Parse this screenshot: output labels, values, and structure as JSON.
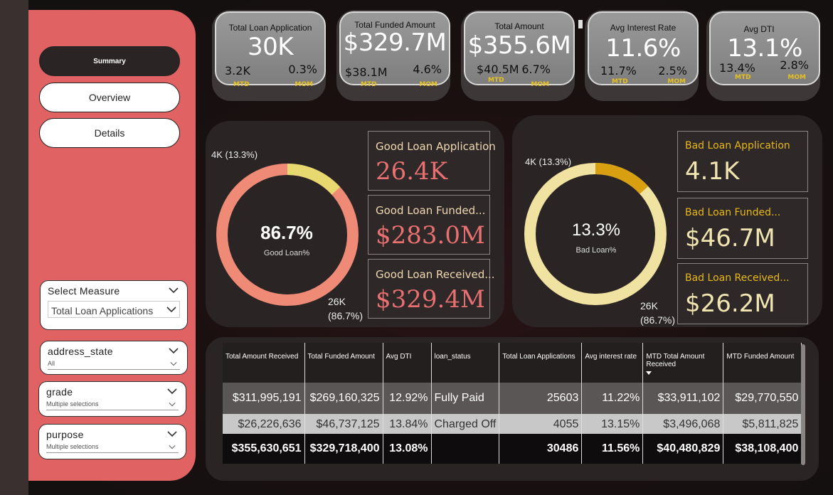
{
  "nav": {
    "summary": "Summary",
    "overview": "Overview",
    "details": "Details"
  },
  "slicers": {
    "measure": {
      "title": "Select Measure",
      "value": "Total Loan Applications"
    },
    "address_state": {
      "title": "address_state",
      "value": "All"
    },
    "grade": {
      "title": "grade",
      "value": "Multiple selections"
    },
    "purpose": {
      "title": "purpose",
      "value": "Multiple selections"
    }
  },
  "kpis": [
    {
      "title": "Total Loan Application",
      "value": "30K",
      "mtd": "3.2K",
      "mom": "0.3%",
      "mtd_label": "MTD",
      "mom_label": "MOM"
    },
    {
      "title": "Total Funded Amount",
      "value": "$329.7M",
      "mtd": "$38.1M",
      "mom": "4.6%",
      "mtd_label": "MTD",
      "mom_label": "MOM"
    },
    {
      "title": "Total  Amount",
      "value": "$355.6M",
      "mtd": "$40.5M",
      "mom": "6.7%",
      "mtd_label": "MTD",
      "mom_label": "MOM"
    },
    {
      "title": "Avg Interest Rate",
      "value": "11.6%",
      "mtd": "11.7%",
      "mom": "2.5%",
      "mtd_label": "MTD",
      "mom_label": "MOM"
    },
    {
      "title": "Avg DTI",
      "value": "13.1%",
      "mtd": "13.4%",
      "mom": "2.8%",
      "mtd_label": "MTD",
      "mom_label": "MOM"
    }
  ],
  "good": {
    "pct": "86.7%",
    "caption": "Good Loan%",
    "label_small": "4K (13.3%)",
    "label_big_1": "26K",
    "label_big_2": "(86.7%)",
    "fraction": 0.867,
    "cards": [
      {
        "title": "Good Loan Application",
        "value": "26.4K"
      },
      {
        "title": "Good Loan Funded...",
        "value": "$283.0M"
      },
      {
        "title": "Good Loan Received...",
        "value": "$329.4M"
      }
    ]
  },
  "bad": {
    "pct": "13.3%",
    "caption": "Bad Loan%",
    "label_small": "4K (13.3%)",
    "label_big_1": "26K",
    "label_big_2": "(86.7%)",
    "fraction": 0.133,
    "cards": [
      {
        "title": "Bad Loan Application",
        "value": "4.1K"
      },
      {
        "title": "Bad Loan Funded...",
        "value": "$46.7M"
      },
      {
        "title": "Bad Loan Received...",
        "value": "$26.2M"
      }
    ]
  },
  "table": {
    "headers": [
      "Total Amount Received",
      "Total Funded Amount",
      "Avg DTI",
      "loan_status",
      "Total Loan Applications",
      "Avg interest rate",
      "MTD Total Amount Received",
      "MTD Funded Amount"
    ],
    "rows": [
      [
        "$311,995,191",
        "$269,160,325",
        "12.92%",
        "Fully Paid",
        "25603",
        "11.22%",
        "$33,911,102",
        "$29,770,550"
      ],
      [
        "$26,226,636",
        "$46,737,125",
        "13.84%",
        "Charged Off",
        "4055",
        "13.15%",
        "$3,496,068",
        "$5,811,825"
      ]
    ],
    "total": [
      "$355,630,651",
      "$329,718,400",
      "13.08%",
      "",
      "30486",
      "11.56%",
      "$40,480,829",
      "$38,108,400"
    ]
  },
  "colors": {
    "sidebar": "#e06262",
    "good_main": "#ee8a76",
    "good_minor": "#e8d870",
    "bad_main": "#f0e2a0",
    "bad_minor": "#d8a010",
    "accent_label": "#e6c020"
  }
}
